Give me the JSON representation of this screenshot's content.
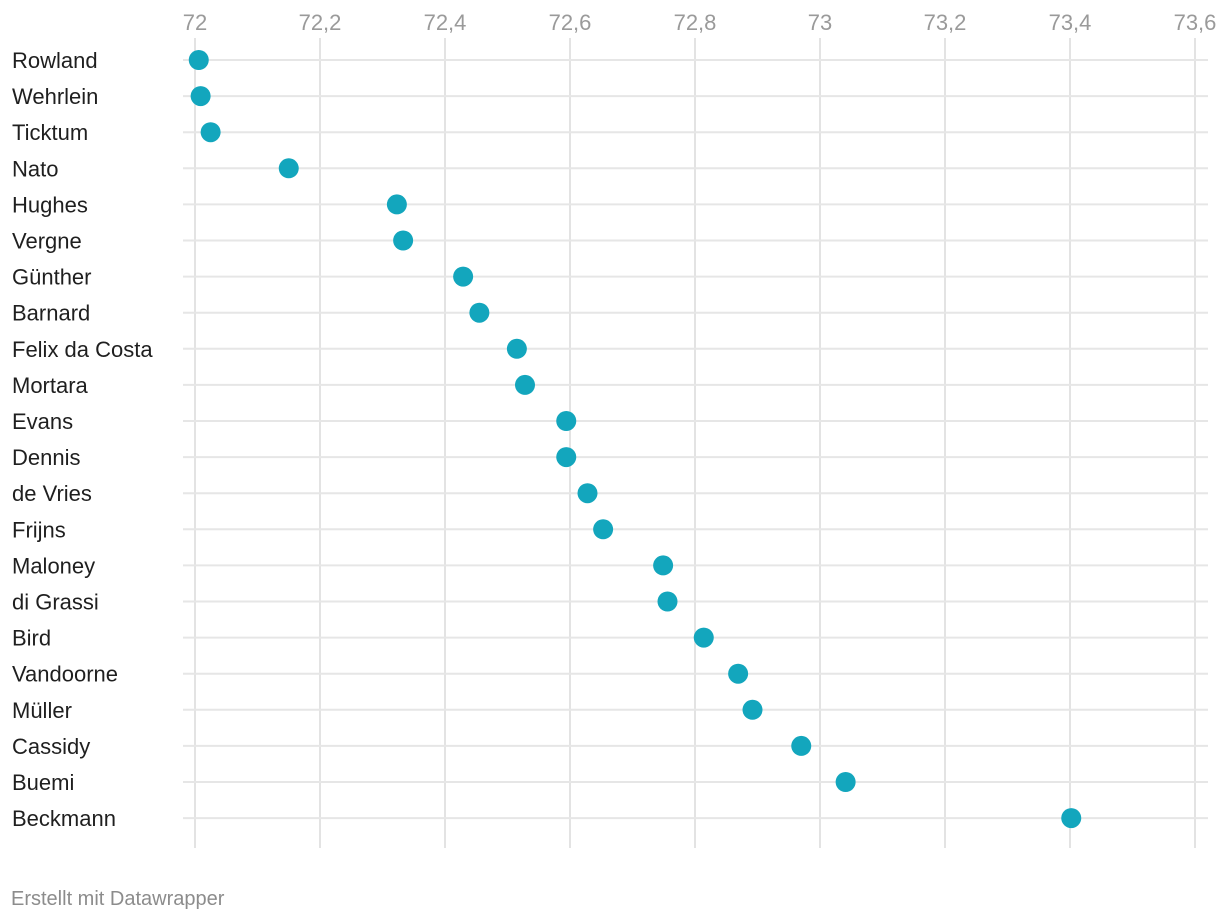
{
  "chart_data": {
    "type": "scatter",
    "title": "",
    "xlabel": "",
    "ylabel": "",
    "xlim": [
      71.97,
      73.62
    ],
    "x_ticks": [
      72,
      72.2,
      72.4,
      72.6,
      72.8,
      73,
      73.2,
      73.4,
      73.6
    ],
    "x_tick_labels": [
      "72",
      "72,2",
      "72,4",
      "72,6",
      "72,8",
      "73",
      "73,2",
      "73,4",
      "73,6"
    ],
    "grid": true,
    "point_color": "#13a6bd",
    "categories": [
      "Rowland",
      "Wehrlein",
      "Ticktum",
      "Nato",
      "Hughes",
      "Vergne",
      "Günther",
      "Barnard",
      "Felix da Costa",
      "Mortara",
      "Evans",
      "Dennis",
      "de Vries",
      "Frijns",
      "Maloney",
      "di Grassi",
      "Bird",
      "Vandoorne",
      "Müller",
      "Cassidy",
      "Buemi",
      "Beckmann"
    ],
    "values": [
      72.006,
      72.009,
      72.025,
      72.15,
      72.323,
      72.333,
      72.429,
      72.455,
      72.515,
      72.528,
      72.594,
      72.594,
      72.628,
      72.653,
      72.749,
      72.756,
      72.814,
      72.869,
      72.892,
      72.97,
      73.041,
      73.402
    ]
  },
  "footer": {
    "credit": "Erstellt mit Datawrapper"
  }
}
